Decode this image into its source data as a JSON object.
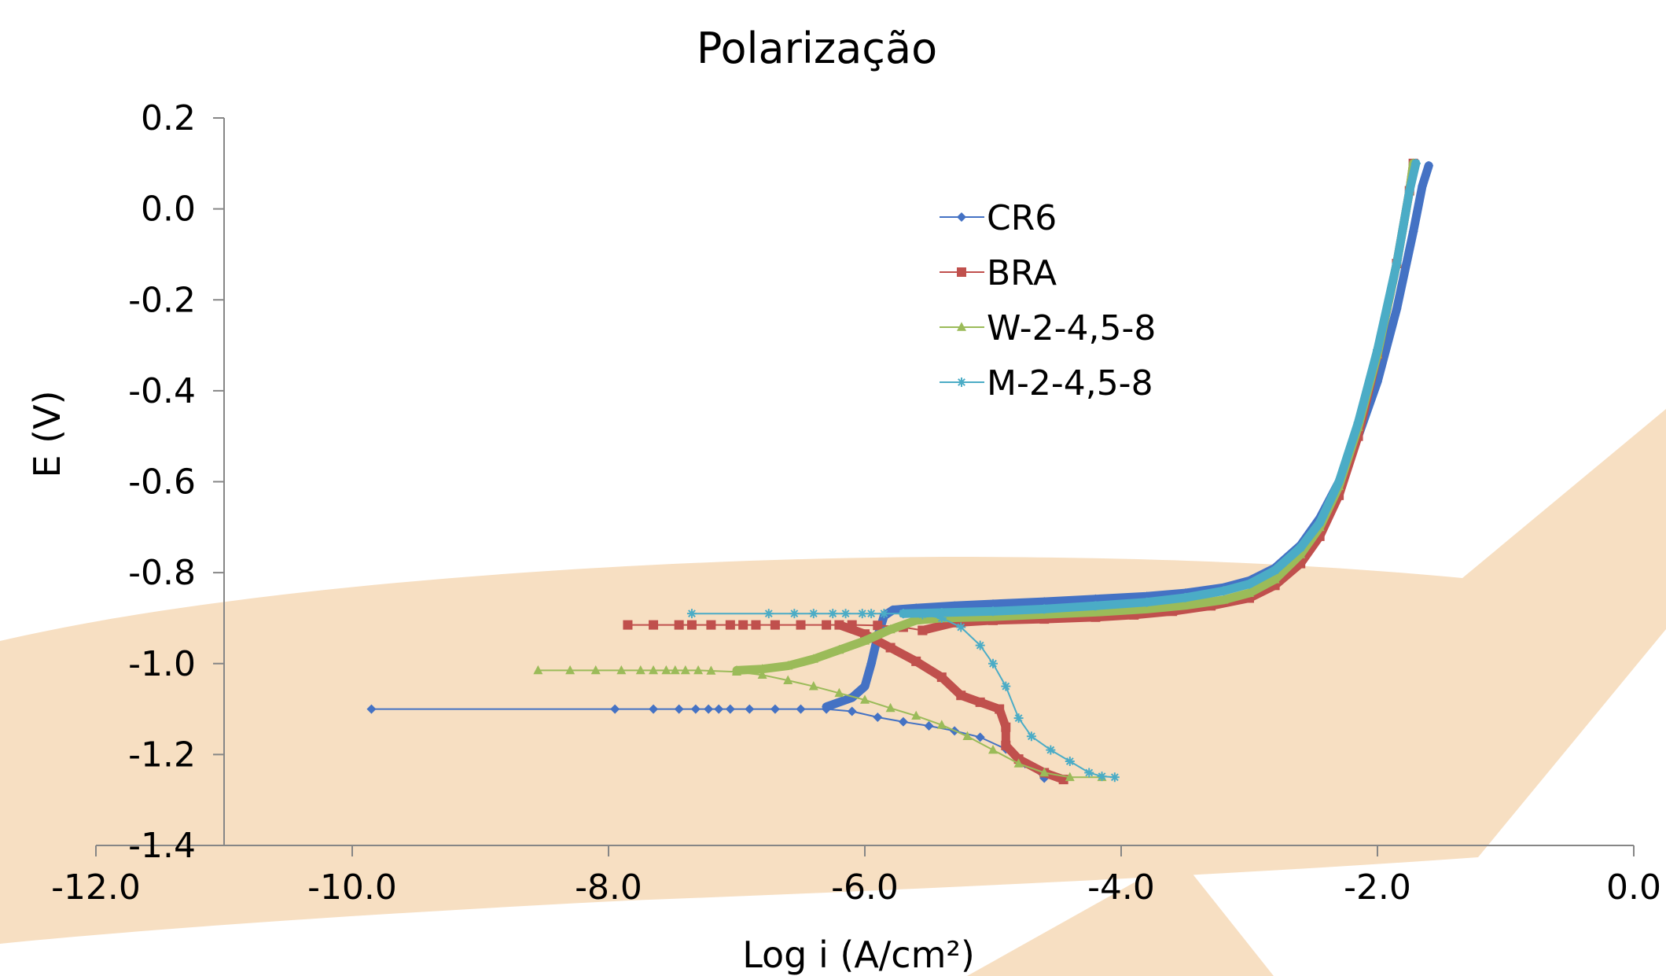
{
  "chart_data": {
    "type": "scatter",
    "title": "Polarização",
    "xlabel": "Log i (A/cm²)",
    "ylabel": "E (V)",
    "xlim": [
      -12.0,
      0.0
    ],
    "ylim": [
      -1.4,
      0.2
    ],
    "x_ticks": [
      "-12.0",
      "-10.0",
      "-8.0",
      "-6.0",
      "-4.0",
      "-2.0",
      "0.0"
    ],
    "y_ticks": [
      "0.2",
      "0.0",
      "-0.2",
      "-0.4",
      "-0.6",
      "-0.8",
      "-1.0",
      "-1.2",
      "-1.4"
    ],
    "y_axis_crosses_x": -11.0,
    "legend_position": "upper-center",
    "series": [
      {
        "name": "CR6",
        "color": "#4472C4",
        "marker": "diamond",
        "cathodic": [
          [
            -9.85,
            -1.1
          ],
          [
            -7.95,
            -1.1
          ],
          [
            -7.65,
            -1.1
          ],
          [
            -7.45,
            -1.1
          ],
          [
            -7.32,
            -1.1
          ],
          [
            -7.22,
            -1.1
          ],
          [
            -7.14,
            -1.1
          ],
          [
            -7.05,
            -1.1
          ],
          [
            -6.9,
            -1.1
          ],
          [
            -6.7,
            -1.1
          ],
          [
            -6.5,
            -1.1
          ],
          [
            -6.3,
            -1.1
          ],
          [
            -6.1,
            -1.105
          ],
          [
            -5.9,
            -1.118
          ],
          [
            -5.7,
            -1.128
          ],
          [
            -5.5,
            -1.137
          ],
          [
            -5.3,
            -1.148
          ],
          [
            -5.1,
            -1.162
          ],
          [
            -4.9,
            -1.188
          ],
          [
            -4.75,
            -1.22
          ],
          [
            -4.6,
            -1.252
          ]
        ],
        "anodic": [
          [
            -6.3,
            -1.095
          ],
          [
            -6.1,
            -1.075
          ],
          [
            -6.0,
            -1.05
          ],
          [
            -5.95,
            -1.0
          ],
          [
            -5.9,
            -0.94
          ],
          [
            -5.85,
            -0.895
          ],
          [
            -5.78,
            -0.882
          ],
          [
            -5.6,
            -0.878
          ],
          [
            -5.3,
            -0.873
          ],
          [
            -5.0,
            -0.869
          ],
          [
            -4.6,
            -0.864
          ],
          [
            -4.2,
            -0.858
          ],
          [
            -3.8,
            -0.852
          ],
          [
            -3.5,
            -0.845
          ],
          [
            -3.2,
            -0.833
          ],
          [
            -3.0,
            -0.818
          ],
          [
            -2.8,
            -0.79
          ],
          [
            -2.6,
            -0.74
          ],
          [
            -2.45,
            -0.68
          ],
          [
            -2.3,
            -0.6
          ],
          [
            -2.15,
            -0.5
          ],
          [
            -2.0,
            -0.38
          ],
          [
            -1.85,
            -0.22
          ],
          [
            -1.72,
            -0.05
          ],
          [
            -1.65,
            0.05
          ],
          [
            -1.6,
            0.095
          ]
        ]
      },
      {
        "name": "BRA",
        "color": "#C0504D",
        "marker": "square",
        "cathodic": [
          [
            -7.85,
            -0.915
          ],
          [
            -7.65,
            -0.915
          ],
          [
            -7.45,
            -0.915
          ],
          [
            -7.35,
            -0.915
          ],
          [
            -7.2,
            -0.915
          ],
          [
            -7.05,
            -0.915
          ],
          [
            -6.95,
            -0.915
          ],
          [
            -6.85,
            -0.915
          ],
          [
            -6.7,
            -0.915
          ],
          [
            -6.5,
            -0.915
          ],
          [
            -6.3,
            -0.915
          ],
          [
            -6.1,
            -0.915
          ],
          [
            -5.9,
            -0.916
          ],
          [
            -5.7,
            -0.92
          ],
          [
            -5.55,
            -0.927
          ]
        ],
        "anodic": [
          [
            -5.55,
            -0.927
          ],
          [
            -5.3,
            -0.91
          ],
          [
            -5.0,
            -0.905
          ],
          [
            -4.6,
            -0.902
          ],
          [
            -4.2,
            -0.898
          ],
          [
            -3.9,
            -0.893
          ],
          [
            -3.6,
            -0.885
          ],
          [
            -3.3,
            -0.873
          ],
          [
            -3.0,
            -0.856
          ],
          [
            -2.8,
            -0.828
          ],
          [
            -2.6,
            -0.78
          ],
          [
            -2.45,
            -0.72
          ],
          [
            -2.3,
            -0.63
          ],
          [
            -2.15,
            -0.5
          ],
          [
            -2.0,
            -0.32
          ],
          [
            -1.85,
            -0.12
          ],
          [
            -1.75,
            0.04
          ],
          [
            -1.72,
            0.1
          ]
        ],
        "cathodic_branch": [
          [
            -6.2,
            -0.915
          ],
          [
            -6.0,
            -0.935
          ],
          [
            -5.8,
            -0.965
          ],
          [
            -5.6,
            -0.995
          ],
          [
            -5.4,
            -1.03
          ],
          [
            -5.25,
            -1.07
          ],
          [
            -5.1,
            -1.085
          ],
          [
            -4.95,
            -1.1
          ],
          [
            -4.9,
            -1.14
          ],
          [
            -4.9,
            -1.18
          ],
          [
            -4.8,
            -1.21
          ],
          [
            -4.6,
            -1.24
          ],
          [
            -4.45,
            -1.255
          ]
        ]
      },
      {
        "name": "W-2-4,5-8",
        "color": "#9BBB59",
        "marker": "triangle",
        "cathodic": [
          [
            -8.55,
            -1.015
          ],
          [
            -8.3,
            -1.015
          ],
          [
            -8.1,
            -1.015
          ],
          [
            -7.9,
            -1.015
          ],
          [
            -7.75,
            -1.015
          ],
          [
            -7.65,
            -1.015
          ],
          [
            -7.55,
            -1.015
          ],
          [
            -7.48,
            -1.015
          ],
          [
            -7.4,
            -1.015
          ],
          [
            -7.3,
            -1.015
          ],
          [
            -7.2,
            -1.016
          ],
          [
            -7.0,
            -1.018
          ],
          [
            -6.8,
            -1.025
          ],
          [
            -6.6,
            -1.037
          ],
          [
            -6.4,
            -1.05
          ],
          [
            -6.2,
            -1.065
          ],
          [
            -6.0,
            -1.08
          ],
          [
            -5.8,
            -1.098
          ],
          [
            -5.6,
            -1.115
          ],
          [
            -5.4,
            -1.135
          ],
          [
            -5.2,
            -1.16
          ],
          [
            -5.0,
            -1.19
          ],
          [
            -4.8,
            -1.22
          ],
          [
            -4.6,
            -1.24
          ],
          [
            -4.4,
            -1.25
          ],
          [
            -4.15,
            -1.25
          ]
        ],
        "anodic": [
          [
            -7.0,
            -1.015
          ],
          [
            -6.8,
            -1.012
          ],
          [
            -6.6,
            -1.005
          ],
          [
            -6.4,
            -0.99
          ],
          [
            -6.2,
            -0.97
          ],
          [
            -6.0,
            -0.95
          ],
          [
            -5.8,
            -0.925
          ],
          [
            -5.6,
            -0.905
          ],
          [
            -5.4,
            -0.9
          ],
          [
            -5.0,
            -0.897
          ],
          [
            -4.6,
            -0.892
          ],
          [
            -4.2,
            -0.887
          ],
          [
            -3.8,
            -0.88
          ],
          [
            -3.5,
            -0.872
          ],
          [
            -3.2,
            -0.86
          ],
          [
            -3.0,
            -0.845
          ],
          [
            -2.8,
            -0.815
          ],
          [
            -2.6,
            -0.76
          ],
          [
            -2.45,
            -0.7
          ],
          [
            -2.3,
            -0.61
          ],
          [
            -2.15,
            -0.48
          ],
          [
            -2.0,
            -0.32
          ],
          [
            -1.85,
            -0.12
          ],
          [
            -1.75,
            0.04
          ],
          [
            -1.72,
            0.1
          ]
        ]
      },
      {
        "name": "M-2-4,5-8",
        "color": "#4BACC6",
        "marker": "star",
        "cathodic": [
          [
            -7.35,
            -0.89
          ],
          [
            -6.75,
            -0.89
          ],
          [
            -6.55,
            -0.89
          ],
          [
            -6.4,
            -0.89
          ],
          [
            -6.25,
            -0.89
          ],
          [
            -6.15,
            -0.89
          ],
          [
            -6.02,
            -0.89
          ],
          [
            -5.95,
            -0.89
          ],
          [
            -5.85,
            -0.89
          ],
          [
            -5.7,
            -0.89
          ],
          [
            -5.55,
            -0.892
          ],
          [
            -5.4,
            -0.9
          ],
          [
            -5.25,
            -0.92
          ],
          [
            -5.1,
            -0.96
          ],
          [
            -5.0,
            -1.0
          ],
          [
            -4.9,
            -1.05
          ],
          [
            -4.8,
            -1.12
          ],
          [
            -4.7,
            -1.16
          ],
          [
            -4.55,
            -1.19
          ],
          [
            -4.4,
            -1.215
          ],
          [
            -4.25,
            -1.24
          ],
          [
            -4.15,
            -1.248
          ],
          [
            -4.05,
            -1.25
          ]
        ],
        "anodic": [
          [
            -5.7,
            -0.89
          ],
          [
            -5.4,
            -0.888
          ],
          [
            -5.0,
            -0.885
          ],
          [
            -4.6,
            -0.88
          ],
          [
            -4.2,
            -0.873
          ],
          [
            -3.8,
            -0.865
          ],
          [
            -3.5,
            -0.855
          ],
          [
            -3.2,
            -0.84
          ],
          [
            -3.0,
            -0.825
          ],
          [
            -2.8,
            -0.795
          ],
          [
            -2.6,
            -0.745
          ],
          [
            -2.45,
            -0.69
          ],
          [
            -2.3,
            -0.6
          ],
          [
            -2.15,
            -0.47
          ],
          [
            -2.0,
            -0.31
          ],
          [
            -1.85,
            -0.12
          ],
          [
            -1.75,
            0.04
          ],
          [
            -1.7,
            0.1
          ]
        ]
      }
    ]
  }
}
